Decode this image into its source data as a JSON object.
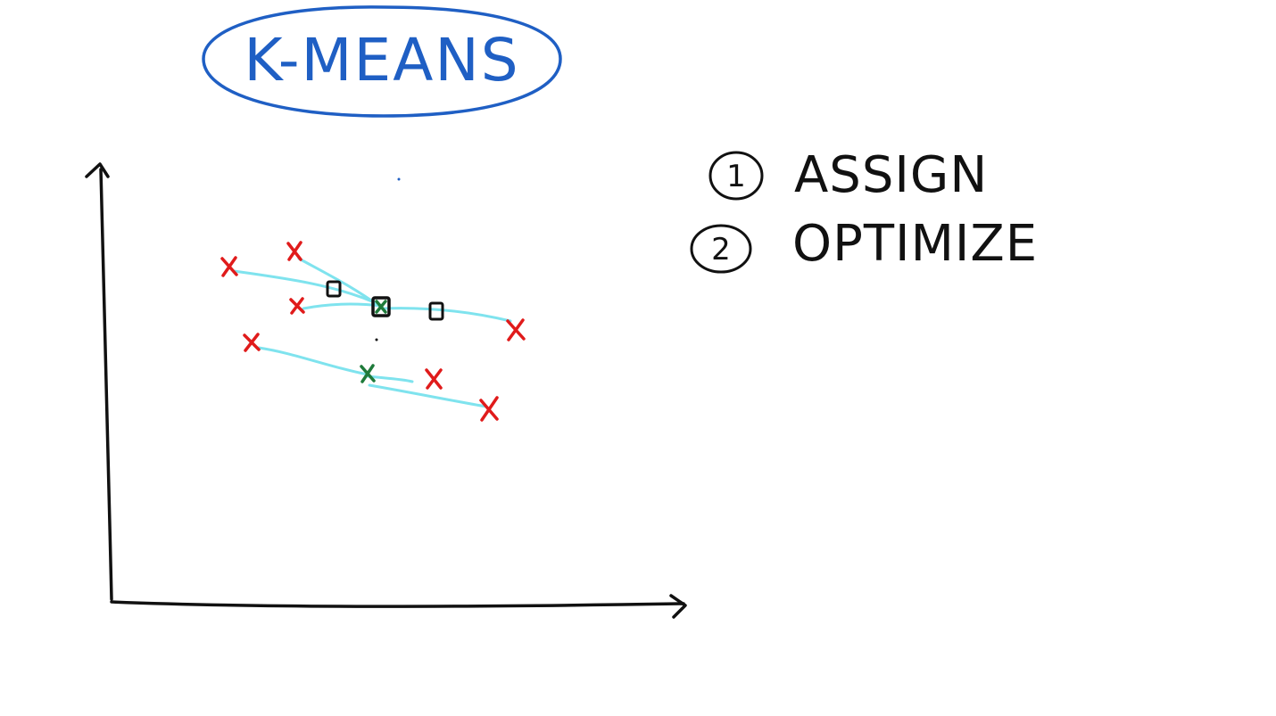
{
  "title": "K-MEANS",
  "steps": [
    {
      "number": "1",
      "label": "ASSIGN"
    },
    {
      "number": "2",
      "label": "OPTIMIZE"
    }
  ],
  "colors": {
    "title_ink": "#1f5fc4",
    "axis_ink": "#111111",
    "data_point": "#e01b1b",
    "center": "#1e7a3a",
    "assignment_line": "#7fe3ee"
  },
  "icons": {
    "data_point": "red-x-mark-icon",
    "cluster_center": "green-x-mark-icon",
    "center_history": "black-square-icon"
  }
}
